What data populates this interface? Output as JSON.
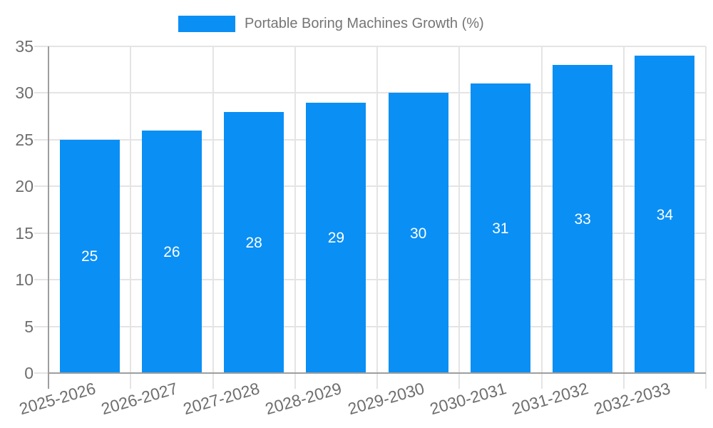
{
  "legend": {
    "label": "Portable Boring Machines Growth (%)",
    "swatch_color": "#0a8ff5"
  },
  "chart_data": {
    "type": "bar",
    "title": "Portable Boring Machines Growth (%)",
    "categories": [
      "2025-2026",
      "2026-2027",
      "2027-2028",
      "2028-2029",
      "2029-2030",
      "2030-2031",
      "2031-2032",
      "2032-2033"
    ],
    "values": [
      25,
      26,
      28,
      29,
      30,
      31,
      33,
      34
    ],
    "xlabel": "",
    "ylabel": "",
    "ylim": [
      0,
      35
    ],
    "yticks": [
      0,
      5,
      10,
      15,
      20,
      25,
      30,
      35
    ],
    "grid": "horizontal-and-vertical",
    "legend_position": "top-center",
    "value_labels_position": "inside-center",
    "x_tick_rotation_deg": -16,
    "colors": {
      "bar": "#0a8ff5",
      "grid": "#e4e4e4",
      "axis": "#9e9e9e",
      "tick_text": "#6e6e6e",
      "legend_text": "#757575",
      "value_text": "#ffffff",
      "background": "#ffffff"
    }
  }
}
